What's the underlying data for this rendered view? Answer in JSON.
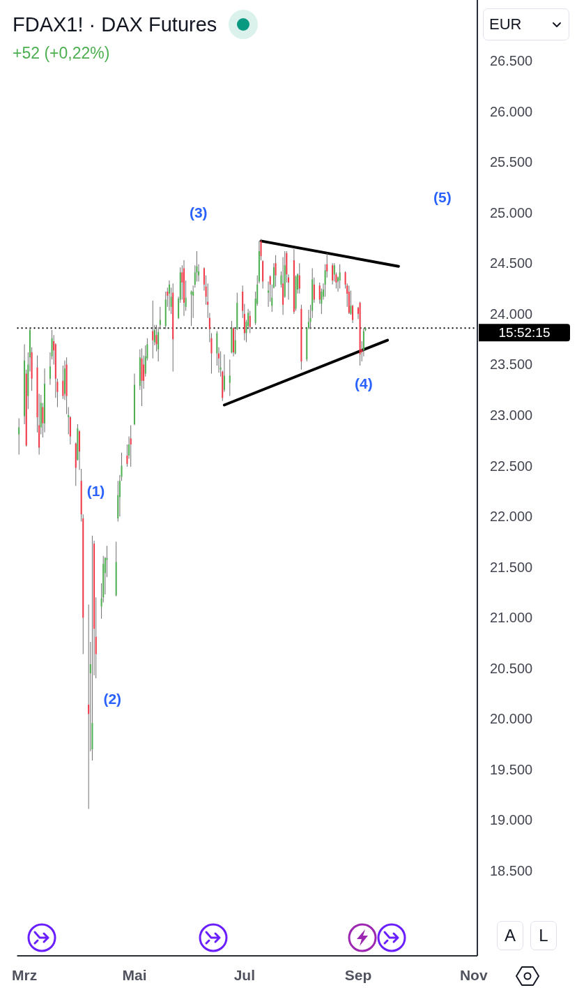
{
  "chart_data": {
    "type": "candlestick",
    "title": "FDAX1! · DAX Futures",
    "subtitle": "+52 (+0,22%)",
    "ylabel": "EUR",
    "x": [
      "--02-28",
      "--03-03",
      "--03-04",
      "--03-05",
      "--03-06",
      "--03-07",
      "--03-10",
      "--03-11",
      "--03-12",
      "--03-13",
      "--03-14",
      "--03-17",
      "--03-18",
      "--03-19",
      "--03-20",
      "--03-21",
      "--03-24",
      "--03-25",
      "--03-26",
      "--03-27",
      "--03-28",
      "--03-31",
      "--04-01",
      "--04-02",
      "--04-03",
      "--04-04",
      "--04-07",
      "--04-08",
      "--04-09",
      "--04-10",
      "--04-11",
      "--04-14",
      "--04-15",
      "--04-16",
      "--04-17",
      "--04-22",
      "--04-23",
      "--04-24",
      "--04-25",
      "--04-28",
      "--04-29",
      "--04-30",
      "--05-02",
      "--05-05",
      "--05-06",
      "--05-07",
      "--05-08",
      "--05-09",
      "--05-12",
      "--05-13",
      "--05-14",
      "--05-15",
      "--05-16",
      "--05-19",
      "--05-20",
      "--05-21",
      "--05-22",
      "--05-23",
      "--05-26",
      "--05-27",
      "--05-28",
      "--05-29",
      "--05-30",
      "--06-02",
      "--06-03",
      "--06-04",
      "--06-05",
      "--06-06",
      "--06-09",
      "--06-10",
      "--06-11",
      "--06-12",
      "--06-13",
      "--06-16",
      "--06-17",
      "--06-18",
      "--06-19",
      "--06-20",
      "--06-23",
      "--06-24",
      "--06-25",
      "--06-26",
      "--06-27",
      "--06-30",
      "--07-01",
      "--07-02",
      "--07-03",
      "--07-04",
      "--07-07",
      "--07-08",
      "--07-09",
      "--07-10",
      "--07-11",
      "--07-14",
      "--07-15",
      "--07-16",
      "--07-17",
      "--07-18",
      "--07-21",
      "--07-22",
      "--07-23",
      "--07-24",
      "--07-25",
      "--07-28",
      "--07-29",
      "--07-30",
      "--07-31",
      "--08-01",
      "--08-04",
      "--08-05",
      "--08-06",
      "--08-07",
      "--08-08",
      "--08-11",
      "--08-12",
      "--08-13",
      "--08-14",
      "--08-15",
      "--08-18",
      "--08-19",
      "--08-20",
      "--08-21",
      "--08-22",
      "--08-25",
      "--08-26",
      "--08-27",
      "--08-28",
      "--08-29",
      "--09-01",
      "--09-02",
      "--09-03",
      "--09-04",
      "--09-05"
    ],
    "ohlc": [
      [
        22820,
        22980,
        22620,
        22890
      ],
      [
        23000,
        23710,
        22920,
        23550
      ],
      [
        23420,
        23460,
        22700,
        22710
      ],
      [
        23200,
        23630,
        23070,
        23510
      ],
      [
        23580,
        23870,
        23440,
        23850
      ],
      [
        23630,
        23680,
        23250,
        23370
      ],
      [
        23480,
        23600,
        22840,
        22990
      ],
      [
        22910,
        23220,
        22620,
        22690
      ],
      [
        22890,
        23210,
        22820,
        23130
      ],
      [
        23090,
        23130,
        22790,
        22930
      ],
      [
        22930,
        23470,
        22840,
        23320
      ],
      [
        23370,
        23630,
        23310,
        23490
      ],
      [
        23590,
        23850,
        23560,
        23770
      ],
      [
        23740,
        23800,
        23510,
        23650
      ],
      [
        23710,
        23720,
        23180,
        23370
      ],
      [
        23340,
        23370,
        23090,
        23240
      ],
      [
        23350,
        23500,
        23170,
        23200
      ],
      [
        23220,
        23550,
        23160,
        23470
      ],
      [
        23510,
        23580,
        23020,
        23200
      ],
      [
        22990,
        23090,
        22820,
        23010
      ],
      [
        22990,
        23000,
        22720,
        22800
      ],
      [
        22730,
        22740,
        22310,
        22490
      ],
      [
        22570,
        22920,
        22560,
        22880
      ],
      [
        22850,
        22860,
        22470,
        22650
      ],
      [
        22360,
        22480,
        21960,
        22030
      ],
      [
        21990,
        22030,
        20650,
        21010
      ],
      [
        20150,
        21140,
        19120,
        20060
      ],
      [
        20460,
        20770,
        19690,
        20550
      ],
      [
        19710,
        21820,
        19600,
        19970
      ],
      [
        21740,
        21770,
        20440,
        20900
      ],
      [
        20820,
        21210,
        20410,
        20650
      ],
      [
        21120,
        21350,
        21000,
        21200
      ],
      [
        21210,
        21620,
        21160,
        21540
      ],
      [
        21450,
        21610,
        21240,
        21600
      ],
      [
        21580,
        21720,
        21410,
        21600
      ],
      [
        21230,
        21760,
        21220,
        21560
      ],
      [
        21990,
        22360,
        21960,
        22220
      ],
      [
        22200,
        22420,
        22010,
        22360
      ],
      [
        22400,
        22640,
        22360,
        22510
      ],
      [
        22610,
        22720,
        22500,
        22530
      ],
      [
        22610,
        22800,
        22580,
        22720
      ],
      [
        22780,
        22910,
        22500,
        22720
      ],
      [
        22920,
        23420,
        22910,
        23310
      ],
      [
        23300,
        23660,
        23260,
        23580
      ],
      [
        23570,
        23670,
        23100,
        23350
      ],
      [
        23510,
        23600,
        23270,
        23350
      ],
      [
        23420,
        23700,
        23390,
        23590
      ],
      [
        23570,
        23770,
        23550,
        23710
      ],
      [
        23840,
        24140,
        23570,
        23750
      ],
      [
        23730,
        23900,
        23700,
        23850
      ],
      [
        23800,
        23900,
        23640,
        23710
      ],
      [
        23660,
        23880,
        23540,
        23830
      ],
      [
        23900,
        24080,
        23860,
        23950
      ],
      [
        23890,
        24230,
        23860,
        24150
      ],
      [
        24230,
        24270,
        24080,
        24190
      ],
      [
        24210,
        24340,
        24040,
        24300
      ],
      [
        24080,
        24270,
        24010,
        24180
      ],
      [
        24220,
        24310,
        23440,
        23760
      ],
      [
        23970,
        24180,
        23960,
        24160
      ],
      [
        24150,
        24470,
        24120,
        24420
      ],
      [
        24420,
        24490,
        24150,
        24320
      ],
      [
        24460,
        24540,
        23990,
        24120
      ],
      [
        24080,
        24340,
        24040,
        24170
      ],
      [
        24200,
        24240,
        23890,
        24230
      ],
      [
        24190,
        24290,
        23970,
        24230
      ],
      [
        24300,
        24490,
        24270,
        24420
      ],
      [
        24420,
        24630,
        24330,
        24480
      ],
      [
        24390,
        24500,
        24330,
        24430
      ],
      [
        24460,
        24470,
        24240,
        24300
      ],
      [
        24280,
        24390,
        24100,
        24180
      ],
      [
        24130,
        24310,
        23970,
        24100
      ],
      [
        23970,
        24020,
        23730,
        23860
      ],
      [
        23770,
        23820,
        23420,
        23620
      ],
      [
        23620,
        23840,
        23500,
        23820
      ],
      [
        23620,
        23680,
        23430,
        23570
      ],
      [
        23460,
        23640,
        23390,
        23480
      ],
      [
        23440,
        23450,
        23150,
        23180
      ],
      [
        23260,
        23610,
        23240,
        23400
      ],
      [
        23330,
        23560,
        23200,
        23400
      ],
      [
        23630,
        23940,
        23620,
        23870
      ],
      [
        23870,
        23880,
        23590,
        23630
      ],
      [
        23620,
        23860,
        23610,
        23750
      ],
      [
        23860,
        24220,
        23850,
        24120
      ],
      [
        24230,
        24290,
        23970,
        24040
      ],
      [
        24010,
        24110,
        23750,
        23820
      ],
      [
        23820,
        23950,
        23730,
        23930
      ],
      [
        23890,
        24060,
        23860,
        24020
      ],
      [
        23990,
        24040,
        23820,
        23880
      ],
      [
        23920,
        24230,
        23900,
        24160
      ],
      [
        24110,
        24390,
        24090,
        24300
      ],
      [
        24330,
        24730,
        24310,
        24630
      ],
      [
        24730,
        24750,
        24540,
        24580
      ],
      [
        24530,
        24540,
        24260,
        24330
      ],
      [
        24220,
        24330,
        24080,
        24240
      ],
      [
        24380,
        24390,
        24130,
        24300
      ],
      [
        24090,
        24300,
        24030,
        24170
      ],
      [
        24270,
        24510,
        24260,
        24470
      ],
      [
        24510,
        24590,
        24280,
        24390
      ],
      [
        24300,
        24430,
        24270,
        24390
      ],
      [
        24310,
        24570,
        24000,
        24100
      ],
      [
        24180,
        24630,
        24170,
        24490
      ],
      [
        24610,
        24630,
        24320,
        24400
      ],
      [
        24370,
        24400,
        24150,
        24320
      ],
      [
        24540,
        24650,
        24010,
        24030
      ],
      [
        24060,
        24390,
        24040,
        24380
      ],
      [
        24250,
        24410,
        24210,
        24400
      ],
      [
        24390,
        24510,
        24210,
        24260
      ],
      [
        24060,
        24100,
        23460,
        23540
      ],
      [
        23560,
        23880,
        23540,
        23870
      ],
      [
        23870,
        24050,
        23860,
        23930
      ],
      [
        23930,
        24100,
        23860,
        23970
      ],
      [
        24040,
        24460,
        23970,
        24350
      ],
      [
        24300,
        24370,
        24120,
        24150
      ],
      [
        24290,
        24320,
        24110,
        24150
      ],
      [
        24110,
        24260,
        24010,
        24230
      ],
      [
        24180,
        24310,
        24150,
        24250
      ],
      [
        24300,
        24500,
        24180,
        24440
      ],
      [
        24500,
        24610,
        24370,
        24430
      ],
      [
        24490,
        24510,
        24300,
        24340
      ],
      [
        24400,
        24510,
        24330,
        24490
      ],
      [
        24400,
        24420,
        24260,
        24320
      ],
      [
        24330,
        24380,
        24230,
        24370
      ],
      [
        24340,
        24500,
        24260,
        24420
      ],
      [
        24420,
        24430,
        24260,
        24300
      ],
      [
        24290,
        24310,
        24080,
        24210
      ],
      [
        24230,
        24290,
        24010,
        24020
      ],
      [
        24010,
        24240,
        24000,
        24090
      ],
      [
        24090,
        24100,
        23920,
        23950
      ],
      [
        24070,
        24080,
        23960,
        24010
      ],
      [
        24120,
        24130,
        23500,
        23610
      ],
      [
        23660,
        23740,
        23540,
        23630
      ],
      [
        23650,
        23870,
        23590,
        23840
      ],
      [
        23850,
        23880,
        23840,
        23870
      ]
    ],
    "colors": [
      "#4caf50",
      "#4caf50",
      "#f23645",
      "#4caf50",
      "#4caf50",
      "#f23645",
      "#f23645",
      "#f23645",
      "#4caf50",
      "#f23645",
      "#4caf50",
      "#4caf50",
      "#4caf50",
      "#f23645",
      "#f23645",
      "#f23645",
      "#f23645",
      "#4caf50",
      "#f23645",
      "#4caf50",
      "#f23645",
      "#f23645",
      "#4caf50",
      "#f23645",
      "#f23645",
      "#f23645",
      "#f23645",
      "#4caf50",
      "#4caf50",
      "#f23645",
      "#f23645",
      "#4caf50",
      "#4caf50",
      "#4caf50",
      "#4caf50",
      "#4caf50",
      "#4caf50",
      "#4caf50",
      "#4caf50",
      "#f23645",
      "#4caf50",
      "#f23645",
      "#4caf50",
      "#4caf50",
      "#f23645",
      "#f23645",
      "#4caf50",
      "#4caf50",
      "#f23645",
      "#4caf50",
      "#f23645",
      "#4caf50",
      "#4caf50",
      "#4caf50",
      "#f23645",
      "#4caf50",
      "#4caf50",
      "#f23645",
      "#4caf50",
      "#4caf50",
      "#f23645",
      "#f23645",
      "#4caf50",
      "#4caf50",
      "#4caf50",
      "#4caf50",
      "#4caf50",
      "#4caf50",
      "#f23645",
      "#f23645",
      "#f23645",
      "#f23645",
      "#f23645",
      "#4caf50",
      "#f23645",
      "#4caf50",
      "#f23645",
      "#4caf50",
      "#4caf50",
      "#4caf50",
      "#f23645",
      "#4caf50",
      "#4caf50",
      "#f23645",
      "#f23645",
      "#4caf50",
      "#4caf50",
      "#f23645",
      "#4caf50",
      "#4caf50",
      "#4caf50",
      "#f23645",
      "#f23645",
      "#4caf50",
      "#f23645",
      "#4caf50",
      "#4caf50",
      "#f23645",
      "#4caf50",
      "#f23645",
      "#4caf50",
      "#f23645",
      "#f23645",
      "#f23645",
      "#4caf50",
      "#4caf50",
      "#f23645",
      "#f23645",
      "#4caf50",
      "#4caf50",
      "#4caf50",
      "#4caf50",
      "#f23645",
      "#f23645",
      "#4caf50",
      "#4caf50",
      "#4caf50",
      "#f23645",
      "#f23645",
      "#4caf50",
      "#f23645",
      "#4caf50",
      "#4caf50",
      "#f23645",
      "#f23645",
      "#f23645",
      "#4caf50",
      "#f23645",
      "#f23645",
      "#f23645",
      "#f23645",
      "#4caf50",
      "#4caf50"
    ],
    "series": [
      {
        "type": "line",
        "color": "#000000",
        "x": [
          "--07-10",
          "--09-23"
        ],
        "values": [
          24730,
          24480
        ]
      },
      {
        "type": "line",
        "color": "#000000",
        "x": [
          "--06-20",
          "--09-17"
        ],
        "values": [
          23110,
          23750
        ]
      }
    ],
    "marker": "none",
    "xlim": [
      "--02-27",
      "--11-05"
    ],
    "xticks": [
      {
        "value": "--03-03",
        "label": "Mrz"
      },
      {
        "value": "--05-02",
        "label": "Mai"
      },
      {
        "value": "--07-01",
        "label": "Jul"
      },
      {
        "value": "--09-01",
        "label": "Sep"
      },
      {
        "value": "--11-03",
        "label": "Nov"
      }
    ],
    "ylim": [
      17670,
      27110
    ],
    "yticks": [
      {
        "value": 18500,
        "label": "18.500"
      },
      {
        "value": 19000,
        "label": "19.000"
      },
      {
        "value": 19500,
        "label": "19.500"
      },
      {
        "value": 20000,
        "label": "20.000"
      },
      {
        "value": 20500,
        "label": "20.500"
      },
      {
        "value": 21000,
        "label": "21.000"
      },
      {
        "value": 21500,
        "label": "21.500"
      },
      {
        "value": 22000,
        "label": "22.000"
      },
      {
        "value": 22500,
        "label": "22.500"
      },
      {
        "value": 23000,
        "label": "23.000"
      },
      {
        "value": 23500,
        "label": "23.500"
      },
      {
        "value": 24000,
        "label": "24.000"
      },
      {
        "value": 24500,
        "label": "24.500"
      },
      {
        "value": 25000,
        "label": "25.000"
      },
      {
        "value": 25500,
        "label": "25.500"
      },
      {
        "value": 26000,
        "label": "26.000"
      },
      {
        "value": 26500,
        "label": "26.500"
      }
    ],
    "ref_lines": [
      {
        "axis": "y",
        "value": 23870,
        "color": "#000000",
        "line_style": "dotted"
      }
    ],
    "annotations": [
      "(1)",
      "(2)",
      "(3)",
      "(4)",
      "(5)",
      "15:52:15",
      "A",
      "L"
    ]
  }
}
